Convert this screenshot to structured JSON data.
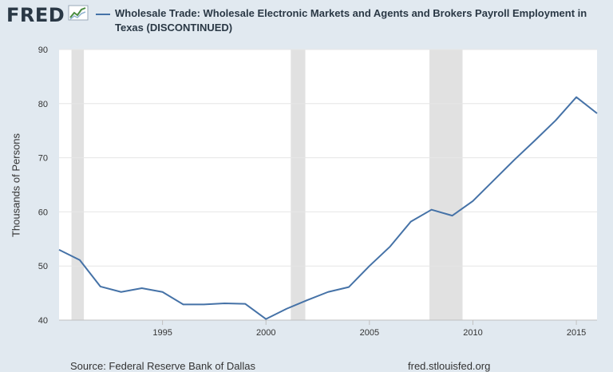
{
  "header": {
    "logo_text": "FRED",
    "logo_icon": "line-chart-icon"
  },
  "chart_data": {
    "type": "line",
    "title": "Wholesale Trade: Wholesale Electronic Markets and Agents and Brokers Payroll Employment in Texas (DISCONTINUED)",
    "xlabel": "",
    "ylabel": "Thousands of Persons",
    "xlim": [
      1990,
      2016
    ],
    "ylim": [
      40,
      90
    ],
    "x_ticks": [
      1995,
      2000,
      2005,
      2010,
      2015
    ],
    "y_ticks": [
      40,
      50,
      60,
      70,
      80,
      90
    ],
    "grid": true,
    "legend": "top",
    "recessions": [
      [
        1990.6,
        1991.2
      ],
      [
        2001.2,
        2001.9
      ],
      [
        2007.9,
        2009.5
      ]
    ],
    "series": [
      {
        "name": "Wholesale Trade: Wholesale Electronic Markets and Agents and Brokers Payroll Employment in Texas (DISCONTINUED)",
        "color": "#4572a7",
        "x": [
          1990,
          1991,
          1992,
          1993,
          1994,
          1995,
          1996,
          1997,
          1998,
          1999,
          2000,
          2001,
          2002,
          2003,
          2004,
          2005,
          2006,
          2007,
          2008,
          2009,
          2010,
          2011,
          2012,
          2013,
          2014,
          2015,
          2016
        ],
        "values": [
          53.0,
          51.1,
          46.2,
          45.2,
          45.9,
          45.2,
          42.9,
          42.9,
          43.1,
          43.0,
          40.2,
          42.1,
          43.7,
          45.2,
          46.1,
          50.0,
          53.6,
          58.2,
          60.4,
          59.3,
          62.0,
          65.8,
          69.6,
          73.2,
          76.9,
          81.2,
          78.2
        ]
      }
    ]
  },
  "footer": {
    "source": "Source: Federal Reserve Bank of Dallas",
    "url": "fred.stlouisfed.org"
  }
}
